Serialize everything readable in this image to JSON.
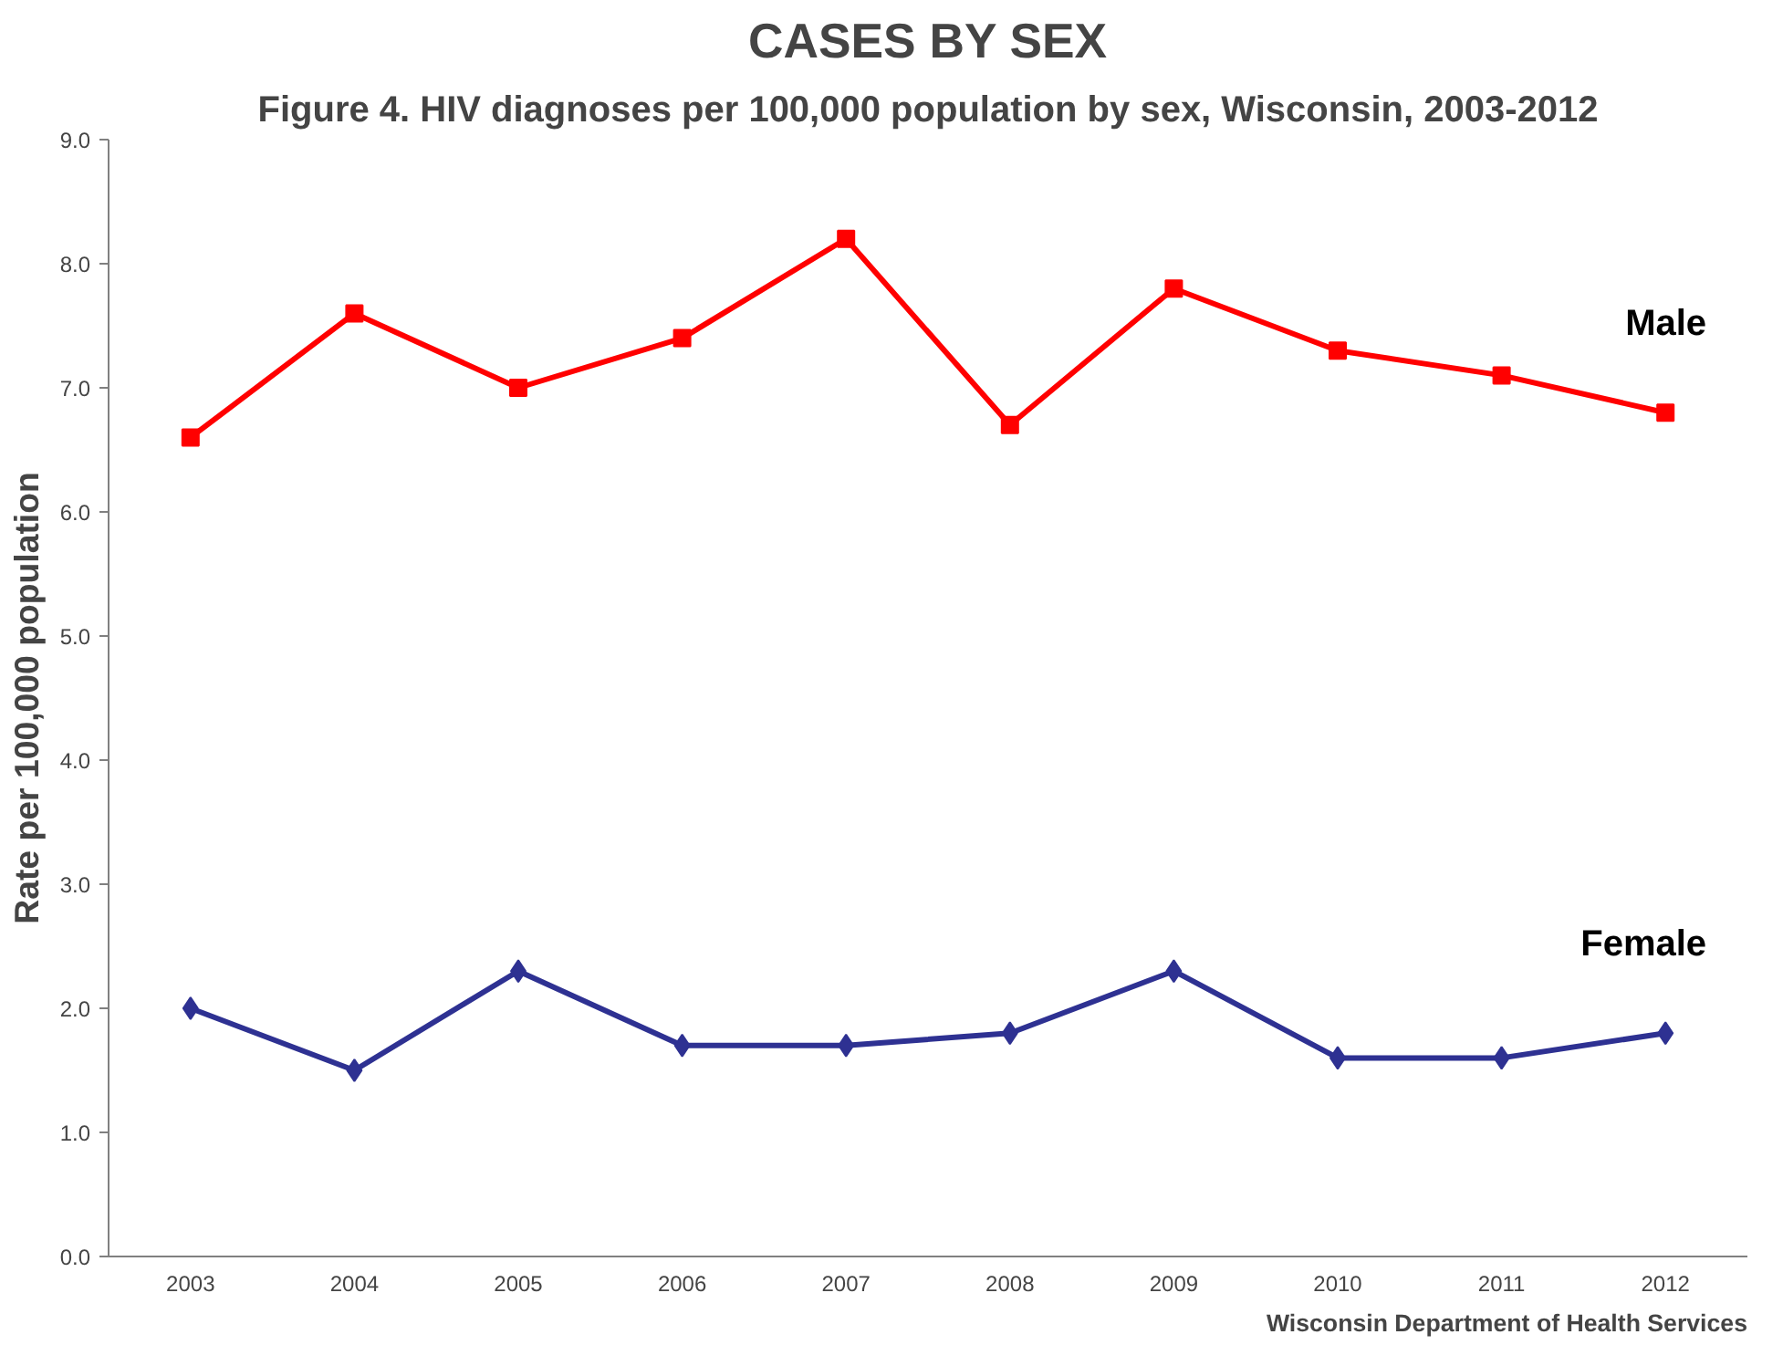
{
  "chart_data": {
    "type": "line",
    "title": "CASES BY SEX",
    "subtitle": "Figure 4. HIV diagnoses per 100,000 population by sex, Wisconsin, 2003-2012",
    "ylabel": "Rate per 100,000 population",
    "categories": [
      "2003",
      "2004",
      "2005",
      "2006",
      "2007",
      "2008",
      "2009",
      "2010",
      "2011",
      "2012"
    ],
    "series": [
      {
        "name": "Male",
        "color": "#ff0000",
        "marker": "square",
        "values": [
          6.6,
          7.6,
          7.0,
          7.4,
          8.2,
          6.7,
          7.8,
          7.3,
          7.1,
          6.8
        ]
      },
      {
        "name": "Female",
        "color": "#2e3192",
        "marker": "diamond",
        "values": [
          2.0,
          1.5,
          2.3,
          1.7,
          1.7,
          1.8,
          2.3,
          1.6,
          1.6,
          1.8
        ]
      }
    ],
    "ylim": [
      0,
      9
    ],
    "yticks": [
      {
        "value": 0,
        "label": "0.0"
      },
      {
        "value": 1,
        "label": "1.0"
      },
      {
        "value": 2,
        "label": "2.0"
      },
      {
        "value": 3,
        "label": "3.0"
      },
      {
        "value": 4,
        "label": "4.0"
      },
      {
        "value": 5,
        "label": "5.0"
      },
      {
        "value": 6,
        "label": "6.0"
      },
      {
        "value": 7,
        "label": "7.0"
      },
      {
        "value": 8,
        "label": "8.0"
      },
      {
        "value": 9,
        "label": "9.0"
      }
    ],
    "grid": false,
    "legend": false,
    "line_style": "solid",
    "annotations": [
      "Wisconsin Department of Health Services"
    ]
  }
}
